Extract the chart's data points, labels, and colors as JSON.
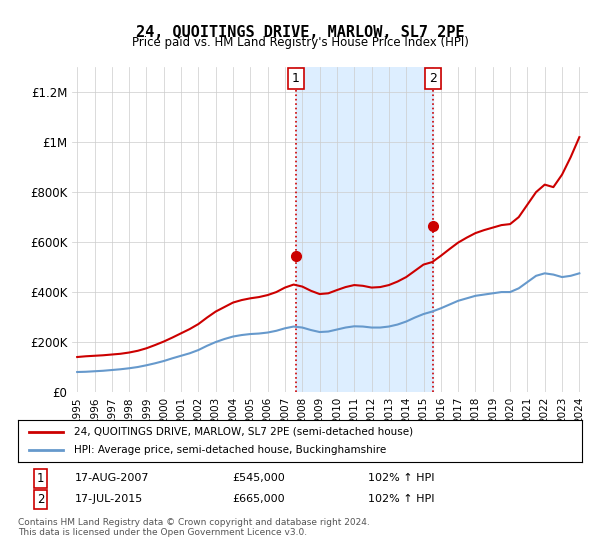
{
  "title": "24, QUOITINGS DRIVE, MARLOW, SL7 2PE",
  "subtitle": "Price paid vs. HM Land Registry's House Price Index (HPI)",
  "legend_line1": "24, QUOITINGS DRIVE, MARLOW, SL7 2PE (semi-detached house)",
  "legend_line2": "HPI: Average price, semi-detached house, Buckinghamshire",
  "footnote": "Contains HM Land Registry data © Crown copyright and database right 2024.\nThis data is licensed under the Open Government Licence v3.0.",
  "annotation1_label": "1",
  "annotation1_date": "17-AUG-2007",
  "annotation1_price": "£545,000",
  "annotation1_hpi": "102% ↑ HPI",
  "annotation2_label": "2",
  "annotation2_date": "17-JUL-2015",
  "annotation2_price": "£665,000",
  "annotation2_hpi": "102% ↑ HPI",
  "red_color": "#cc0000",
  "blue_color": "#6699cc",
  "shading_color": "#ddeeff",
  "dotted_color": "#cc0000",
  "background_color": "#ffffff",
  "ylim_min": 0,
  "ylim_max": 1300000,
  "yticks": [
    0,
    200000,
    400000,
    600000,
    800000,
    1000000,
    1200000
  ],
  "ytick_labels": [
    "£0",
    "£200K",
    "£400K",
    "£600K",
    "£800K",
    "£1M",
    "£1.2M"
  ],
  "sale1_x": 2007.63,
  "sale1_y": 545000,
  "sale2_x": 2015.54,
  "sale2_y": 665000,
  "vline1_x": 2007.63,
  "vline2_x": 2015.54,
  "hpi_years": [
    1995,
    1995.5,
    1996,
    1996.5,
    1997,
    1997.5,
    1998,
    1998.5,
    1999,
    1999.5,
    2000,
    2000.5,
    2001,
    2001.5,
    2002,
    2002.5,
    2003,
    2003.5,
    2004,
    2004.5,
    2005,
    2005.5,
    2006,
    2006.5,
    2007,
    2007.5,
    2008,
    2008.5,
    2009,
    2009.5,
    2010,
    2010.5,
    2011,
    2011.5,
    2012,
    2012.5,
    2013,
    2013.5,
    2014,
    2014.5,
    2015,
    2015.5,
    2016,
    2016.5,
    2017,
    2017.5,
    2018,
    2018.5,
    2019,
    2019.5,
    2020,
    2020.5,
    2021,
    2021.5,
    2022,
    2022.5,
    2023,
    2023.5,
    2024
  ],
  "hpi_values": [
    80000,
    81000,
    83000,
    85000,
    88000,
    91000,
    95000,
    100000,
    107000,
    115000,
    124000,
    135000,
    145000,
    155000,
    168000,
    185000,
    200000,
    212000,
    222000,
    228000,
    232000,
    234000,
    238000,
    245000,
    255000,
    262000,
    258000,
    248000,
    240000,
    242000,
    250000,
    258000,
    263000,
    262000,
    258000,
    258000,
    262000,
    270000,
    282000,
    298000,
    312000,
    322000,
    335000,
    350000,
    365000,
    375000,
    385000,
    390000,
    395000,
    400000,
    400000,
    415000,
    440000,
    465000,
    475000,
    470000,
    460000,
    465000,
    475000
  ],
  "red_years": [
    1995,
    1995.5,
    1996,
    1996.5,
    1997,
    1997.5,
    1998,
    1998.5,
    1999,
    1999.5,
    2000,
    2000.5,
    2001,
    2001.5,
    2002,
    2002.5,
    2003,
    2003.5,
    2004,
    2004.5,
    2005,
    2005.5,
    2006,
    2006.5,
    2007,
    2007.5,
    2008,
    2008.5,
    2009,
    2009.5,
    2010,
    2010.5,
    2011,
    2011.5,
    2012,
    2012.5,
    2013,
    2013.5,
    2014,
    2014.5,
    2015,
    2015.5,
    2016,
    2016.5,
    2017,
    2017.5,
    2018,
    2018.5,
    2019,
    2019.5,
    2020,
    2020.5,
    2021,
    2021.5,
    2022,
    2022.5,
    2023,
    2023.5,
    2024
  ],
  "red_values": [
    140000,
    143000,
    145000,
    147000,
    150000,
    153000,
    158000,
    165000,
    175000,
    188000,
    202000,
    218000,
    235000,
    252000,
    272000,
    298000,
    322000,
    340000,
    358000,
    368000,
    375000,
    380000,
    388000,
    400000,
    418000,
    430000,
    422000,
    405000,
    392000,
    395000,
    408000,
    420000,
    428000,
    425000,
    418000,
    420000,
    428000,
    442000,
    460000,
    485000,
    510000,
    520000,
    545000,
    572000,
    598000,
    618000,
    636000,
    648000,
    658000,
    668000,
    672000,
    700000,
    750000,
    800000,
    830000,
    820000,
    870000,
    940000,
    1020000
  ],
  "xtick_years": [
    1995,
    1996,
    1997,
    1998,
    1999,
    2000,
    2001,
    2002,
    2003,
    2004,
    2005,
    2006,
    2007,
    2008,
    2009,
    2010,
    2011,
    2012,
    2013,
    2014,
    2015,
    2016,
    2017,
    2018,
    2019,
    2020,
    2021,
    2022,
    2023,
    2024
  ]
}
